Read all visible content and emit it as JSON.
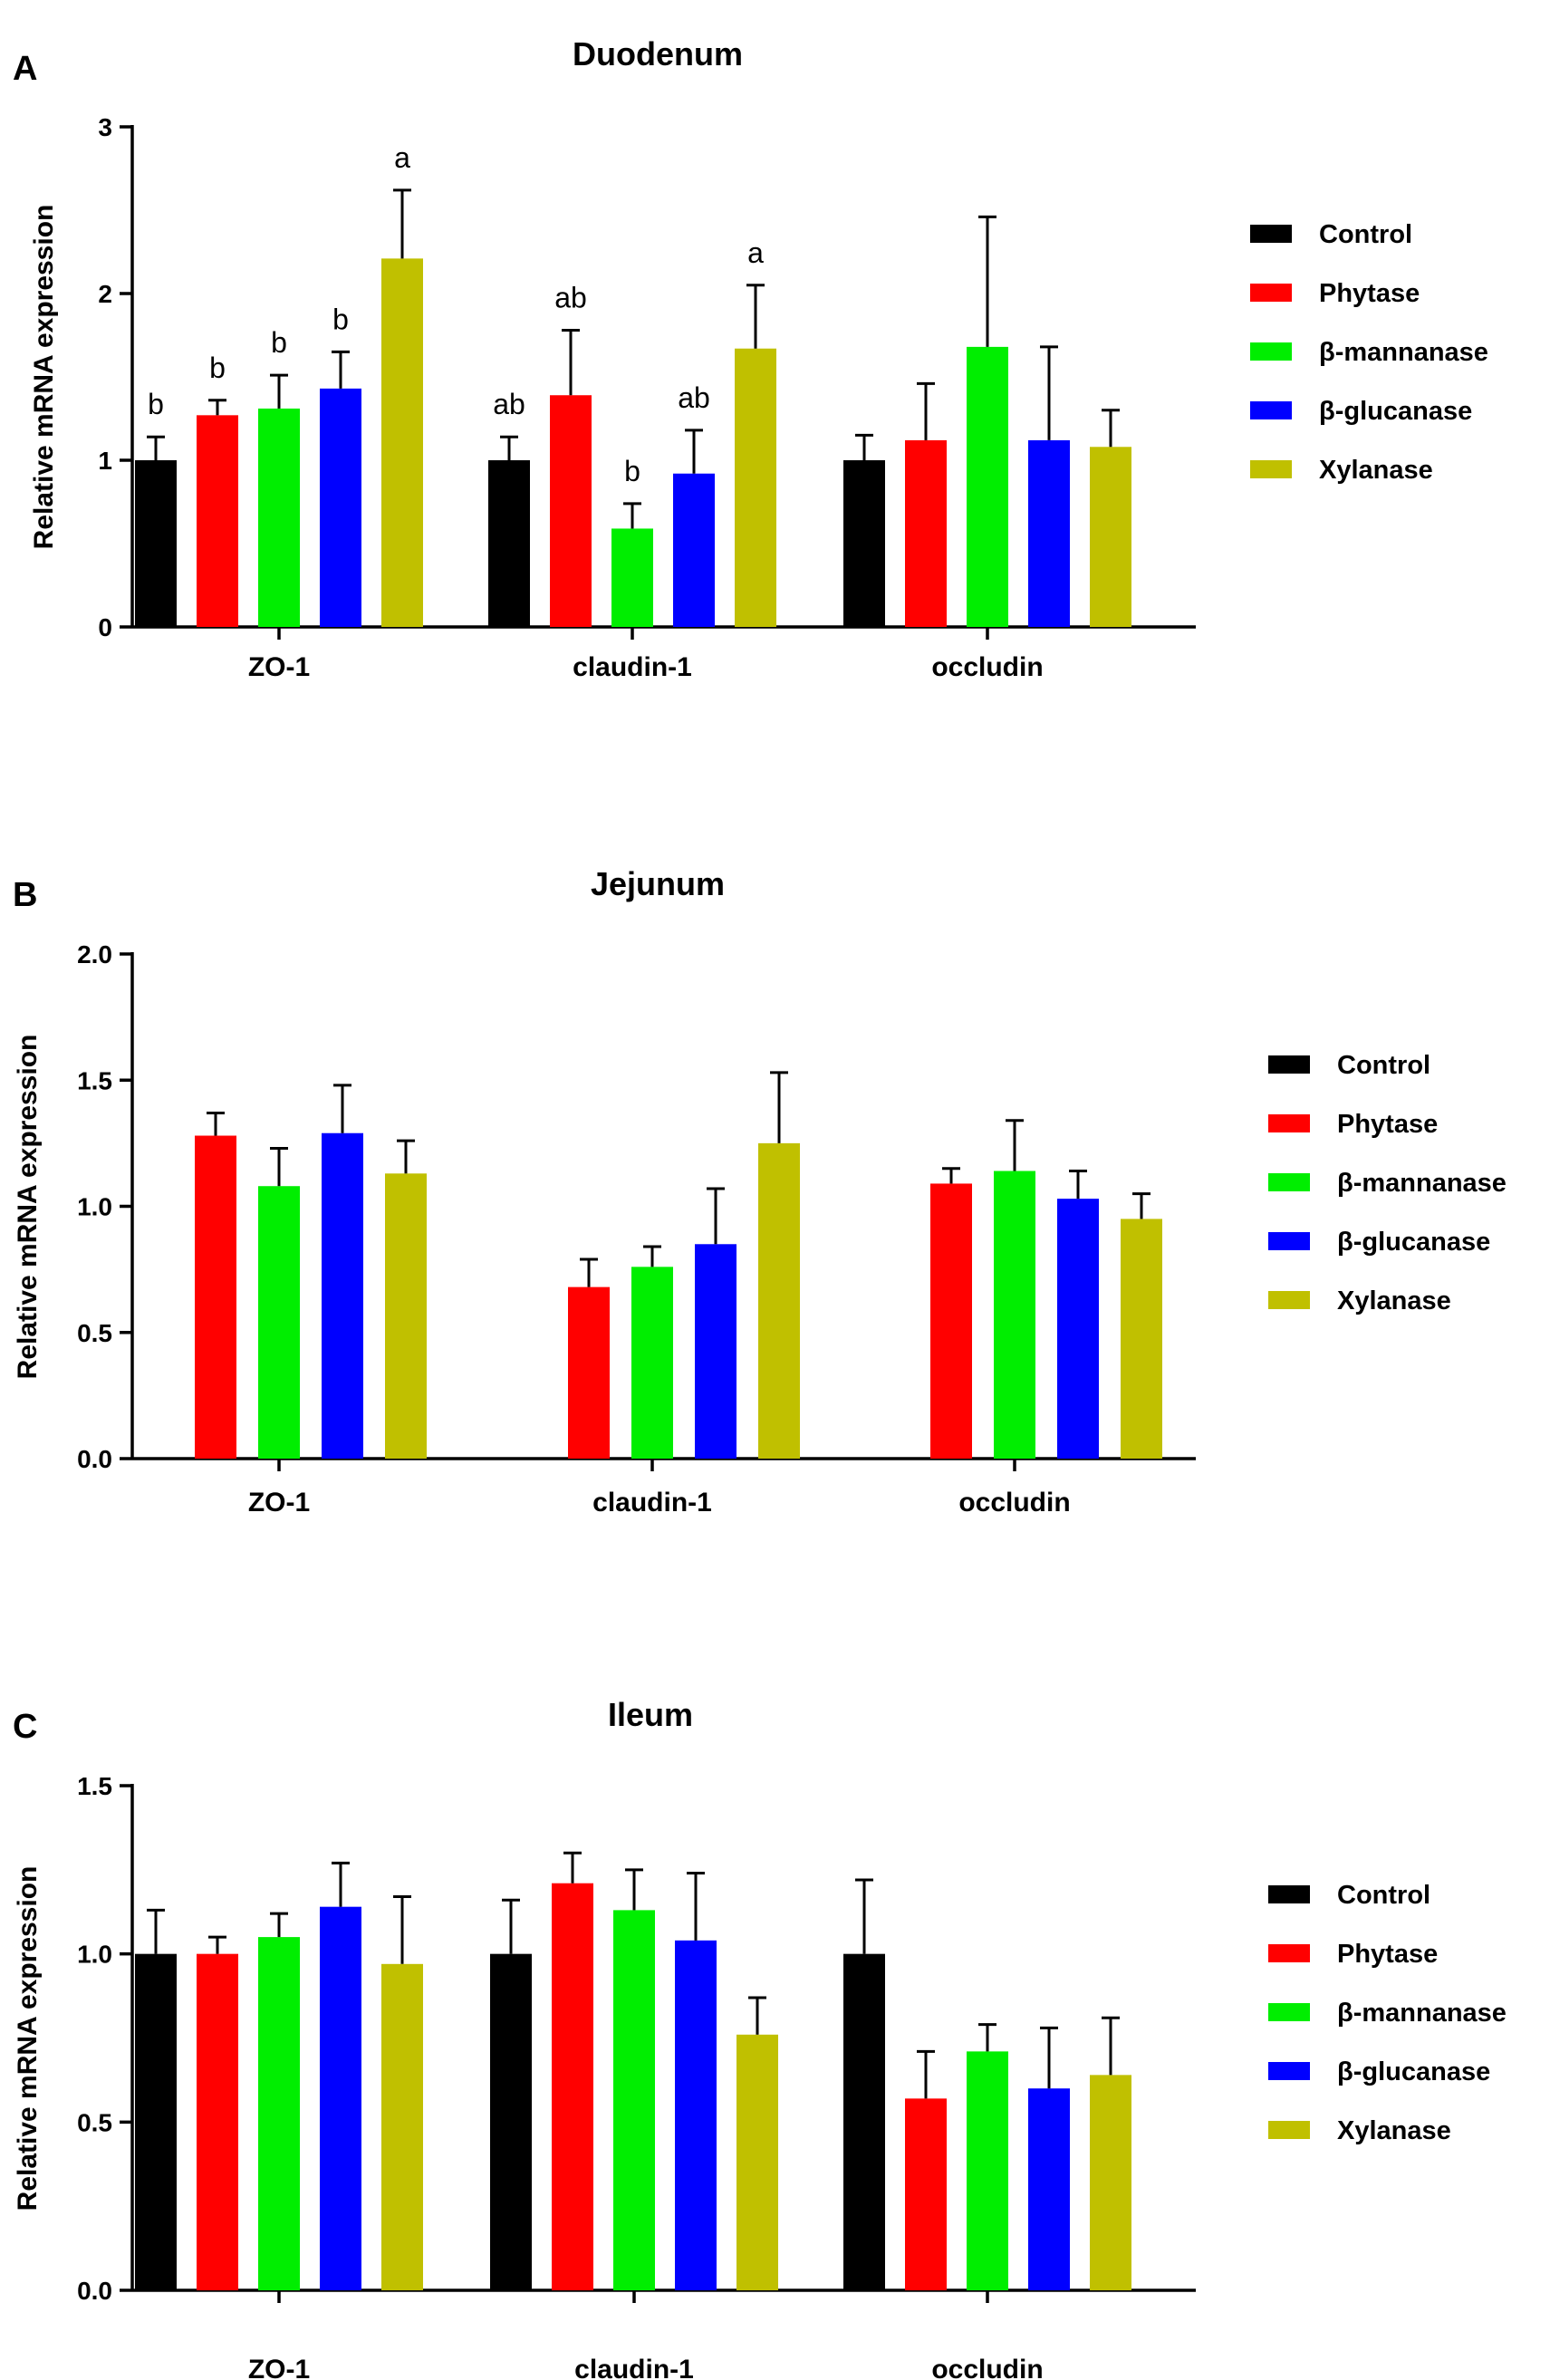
{
  "chart_data": [
    {
      "type": "bar",
      "panel": "A",
      "title": "Duodenum",
      "xlabel": "",
      "ylabel": "Relative mRNA expression",
      "ylim": [
        0,
        3
      ],
      "yticks": [
        "0",
        "1",
        "2",
        "3"
      ],
      "categories": [
        "ZO-1",
        "claudin-1",
        "occludin"
      ],
      "series": [
        {
          "name": "Control",
          "color": "#000000",
          "values": [
            1.0,
            1.0,
            1.0
          ],
          "errors": [
            0.14,
            0.14,
            0.15
          ],
          "labels": [
            "b",
            "ab",
            ""
          ]
        },
        {
          "name": "Phytase",
          "color": "#ff0000",
          "values": [
            1.27,
            1.39,
            1.12
          ],
          "errors": [
            0.09,
            0.39,
            0.34
          ],
          "labels": [
            "b",
            "ab",
            ""
          ]
        },
        {
          "name": "β-mannanase",
          "color": "#00ee00",
          "values": [
            1.31,
            0.59,
            1.68
          ],
          "errors": [
            0.2,
            0.15,
            0.78
          ],
          "labels": [
            "b",
            "b",
            ""
          ]
        },
        {
          "name": "β-glucanase",
          "color": "#0000ff",
          "values": [
            1.43,
            0.92,
            1.12
          ],
          "errors": [
            0.22,
            0.26,
            0.56
          ],
          "labels": [
            "b",
            "ab",
            ""
          ]
        },
        {
          "name": "Xylanase",
          "color": "#c0c000",
          "values": [
            2.21,
            1.67,
            1.08
          ],
          "errors": [
            0.41,
            0.38,
            0.22
          ],
          "labels": [
            "a",
            "a",
            ""
          ]
        }
      ]
    },
    {
      "type": "bar",
      "panel": "B",
      "title": "Jejunum",
      "xlabel": "",
      "ylabel": "Relative mRNA expression",
      "ylim": [
        0,
        2.0
      ],
      "yticks": [
        "0.0",
        "0.5",
        "1.0",
        "1.5",
        "2.0"
      ],
      "categories": [
        "ZO-1",
        "claudin-1",
        "occludin"
      ],
      "series": [
        {
          "name": "Control",
          "color": "#000000",
          "values": [
            0,
            0,
            0
          ],
          "errors": [
            0,
            0,
            0
          ]
        },
        {
          "name": "Phytase",
          "color": "#ff0000",
          "values": [
            1.28,
            0.68,
            1.09
          ],
          "errors": [
            0.09,
            0.11,
            0.06
          ]
        },
        {
          "name": "β-mannanase",
          "color": "#00ee00",
          "values": [
            1.08,
            0.76,
            1.14
          ],
          "errors": [
            0.15,
            0.08,
            0.2
          ]
        },
        {
          "name": "β-glucanase",
          "color": "#0000ff",
          "values": [
            1.29,
            0.85,
            1.03
          ],
          "errors": [
            0.19,
            0.22,
            0.11
          ]
        },
        {
          "name": "Xylanase",
          "color": "#c0c000",
          "values": [
            1.13,
            1.25,
            0.95
          ],
          "errors": [
            0.13,
            0.28,
            0.1
          ]
        }
      ]
    },
    {
      "type": "bar",
      "panel": "C",
      "title": "Ileum",
      "xlabel": "",
      "ylabel": "Relative mRNA expression",
      "ylim": [
        0,
        1.5
      ],
      "yticks": [
        "0.0",
        "0.5",
        "1.0",
        "1.5"
      ],
      "categories": [
        "ZO-1",
        "claudin-1",
        "occludin"
      ],
      "series": [
        {
          "name": "Control",
          "color": "#000000",
          "values": [
            1.0,
            1.0,
            1.0
          ],
          "errors": [
            0.13,
            0.16,
            0.22
          ]
        },
        {
          "name": "Phytase",
          "color": "#ff0000",
          "values": [
            1.0,
            1.21,
            0.57
          ],
          "errors": [
            0.05,
            0.09,
            0.14
          ]
        },
        {
          "name": "β-mannanase",
          "color": "#00ee00",
          "values": [
            1.05,
            1.13,
            0.71
          ],
          "errors": [
            0.07,
            0.12,
            0.08
          ]
        },
        {
          "name": "β-glucanase",
          "color": "#0000ff",
          "values": [
            1.14,
            1.04,
            0.6
          ],
          "errors": [
            0.13,
            0.2,
            0.18
          ]
        },
        {
          "name": "Xylanase",
          "color": "#c0c000",
          "values": [
            0.97,
            0.76,
            0.64
          ],
          "errors": [
            0.2,
            0.11,
            0.17
          ]
        }
      ]
    }
  ]
}
